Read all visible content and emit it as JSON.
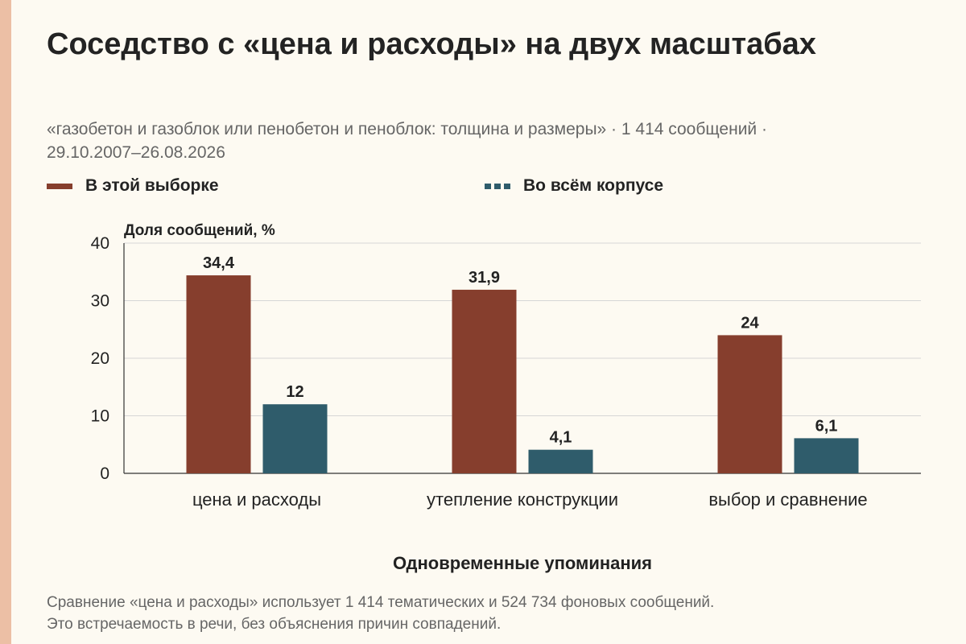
{
  "header": {
    "title": "Соседство с «цена и расходы» на двух масштабах",
    "subtitle": "«газобетон и газоблок или пенобетон и пеноблок: толщина и размеры» · 1 414 сообщений · 29.10.2007–26.08.2026"
  },
  "legend": {
    "items": [
      {
        "label": "В этой выборке",
        "color": "#863e2d",
        "style": "solid"
      },
      {
        "label": "Во всём корпусе",
        "color": "#2f5c6b",
        "style": "dashed"
      }
    ]
  },
  "chart_data": {
    "type": "bar",
    "categories": [
      "цена и расходы",
      "утепление конструкции",
      "выбор и сравнение"
    ],
    "series": [
      {
        "name": "В этой выборке",
        "values": [
          34.4,
          31.9,
          24
        ],
        "labels": [
          "34,4",
          "31,9",
          "24"
        ],
        "color": "#863e2d"
      },
      {
        "name": "Во всём корпусе",
        "values": [
          12,
          4.1,
          6.1
        ],
        "labels": [
          "12",
          "4,1",
          "6,1"
        ],
        "color": "#2f5c6b"
      }
    ],
    "ylim": [
      0,
      40
    ],
    "yticks": [
      0,
      10,
      20,
      30,
      40
    ],
    "ylabel": "Доля сообщений, %",
    "xlabel": "Одновременные упоминания",
    "grid": true,
    "legend_position": "top"
  },
  "footnote": {
    "line1": "Сравнение «цена и расходы» использует 1 414 тематических и 524 734 фоновых сообщений.",
    "line2": "Это встречаемость в речи, без объяснения причин совпадений."
  }
}
